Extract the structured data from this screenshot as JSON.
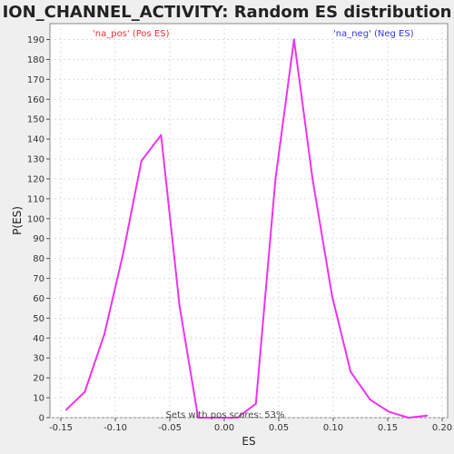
{
  "chart_data": {
    "type": "line",
    "title": "ION_CHANNEL_ACTIVITY: Random ES distribution",
    "xlabel": "ES",
    "ylabel": "P(ES)",
    "xlim": [
      -0.16,
      0.205
    ],
    "ylim": [
      0,
      198
    ],
    "grid": true,
    "x_ticks": [
      -0.15,
      -0.1,
      -0.05,
      0.0,
      0.05,
      0.1,
      0.15,
      0.2
    ],
    "x_tick_labels": [
      "-0.15",
      "-0.10",
      "-0.05",
      "0.00",
      "0.05",
      "0.10",
      "0.15",
      "0.20"
    ],
    "y_ticks": [
      0,
      10,
      20,
      30,
      40,
      50,
      60,
      70,
      80,
      90,
      100,
      110,
      120,
      130,
      140,
      150,
      160,
      170,
      180,
      190
    ],
    "y_tick_labels": [
      "0",
      "10",
      "20",
      "30",
      "40",
      "50",
      "60",
      "70",
      "80",
      "90",
      "100",
      "110",
      "120",
      "130",
      "140",
      "150",
      "160",
      "170",
      "180",
      "190"
    ],
    "series": [
      {
        "color": "#ee33ee",
        "x": [
          -0.145,
          -0.128,
          -0.11,
          -0.093,
          -0.076,
          -0.058,
          -0.041,
          -0.024,
          -0.007,
          0.012,
          0.029,
          0.047,
          0.064,
          0.081,
          0.099,
          0.116,
          0.134,
          0.151,
          0.169,
          0.186
        ],
        "y": [
          4,
          13,
          42,
          82,
          129,
          142,
          56,
          0,
          0,
          0,
          7,
          120,
          190,
          120,
          61,
          23,
          9,
          3,
          0,
          1
        ]
      }
    ],
    "annotations": {
      "pos_label": "'na_pos' (Pos ES)",
      "neg_label": "'na_neg' (Neg ES)",
      "pos_color": "#ee3333",
      "neg_color": "#3333ee",
      "footer": "Sets with pos scores: 53%"
    }
  }
}
